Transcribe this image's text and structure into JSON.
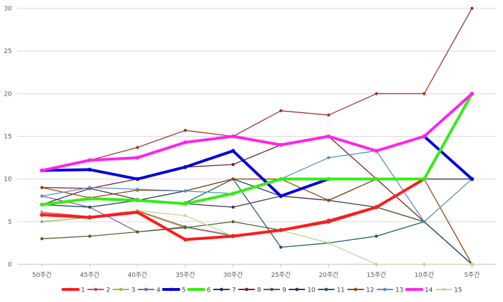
{
  "chart_data": {
    "type": "line",
    "title": "",
    "xlabel": "",
    "ylabel": "",
    "categories": [
      "50주간",
      "45주간",
      "40주간",
      "35주간",
      "30주간",
      "25주간",
      "20주간",
      "15주간",
      "10주간",
      "5주간"
    ],
    "ylim": [
      0,
      30
    ],
    "yticks": [
      0,
      5,
      10,
      15,
      20,
      25,
      30
    ],
    "grid": true,
    "legend_position": "bottom",
    "series": [
      {
        "name": "1",
        "color": "#ff1a1a",
        "values": [
          5.8,
          5.5,
          6.1,
          2.9,
          3.3,
          4.0,
          5.0,
          6.7,
          10.0,
          null
        ]
      },
      {
        "name": "2",
        "color": "#c0504d",
        "values": [
          6.1,
          5.6,
          6.3,
          4.4,
          3.4,
          4.1,
          5.2,
          6.8,
          10.0,
          null
        ]
      },
      {
        "name": "3",
        "color": "#9bbb59",
        "values": [
          5.0,
          5.5,
          6.2,
          4.3,
          3.4,
          4.0,
          2.5,
          null,
          null,
          null
        ]
      },
      {
        "name": "4",
        "color": "#8064a2",
        "values": [
          8.0,
          6.7,
          3.8,
          4.4,
          3.3,
          null,
          null,
          null,
          null,
          null
        ]
      },
      {
        "name": "5",
        "color": "#0000dd",
        "values": [
          11.0,
          11.1,
          10.0,
          11.4,
          13.3,
          8.0,
          10.0,
          null,
          15.0,
          10.0
        ]
      },
      {
        "name": "6",
        "color": "#33ee11",
        "values": [
          7.0,
          7.7,
          7.5,
          7.1,
          8.3,
          10.0,
          10.0,
          10.0,
          10.0,
          20.0
        ]
      },
      {
        "name": "7",
        "color": "#1f3864",
        "values": [
          7.0,
          6.7,
          7.5,
          8.6,
          10.0,
          8.0,
          7.5,
          6.7,
          5.0,
          0.0
        ]
      },
      {
        "name": "8",
        "color": "#7b1c2b",
        "values": [
          9.0,
          8.9,
          10.0,
          11.4,
          11.7,
          14.0,
          15.0,
          10.0,
          5.0,
          null
        ]
      },
      {
        "name": "9",
        "color": "#4f6228",
        "values": [
          3.0,
          3.3,
          3.8,
          4.3,
          5.0,
          4.0,
          5.0,
          6.7,
          5.0,
          0.0
        ]
      },
      {
        "name": "10",
        "color": "#3f3151",
        "values": [
          7.0,
          8.9,
          7.6,
          7.1,
          6.7,
          8.0,
          7.5,
          10.0,
          10.0,
          10.0
        ]
      },
      {
        "name": "11",
        "color": "#215967",
        "values": [
          7.0,
          6.7,
          7.5,
          7.2,
          10.0,
          2.0,
          2.5,
          3.3,
          5.0,
          0.0
        ]
      },
      {
        "name": "12",
        "color": "#984807",
        "values": [
          9.0,
          7.8,
          8.7,
          8.6,
          10.0,
          10.0,
          7.5,
          10.0,
          10.0,
          0.0
        ]
      },
      {
        "name": "13",
        "color": "#5b8fc4",
        "values": [
          8.0,
          9.0,
          8.8,
          8.6,
          8.3,
          10.0,
          12.5,
          13.3,
          5.0,
          10.0
        ]
      },
      {
        "name": "14",
        "color": "#ff22ee",
        "values": [
          11.0,
          12.2,
          12.5,
          14.3,
          15.0,
          14.0,
          15.0,
          13.3,
          15.0,
          20.0
        ]
      },
      {
        "name": "15",
        "color": "#c4d79b",
        "values": [
          6.0,
          5.4,
          6.3,
          5.7,
          3.3,
          4.0,
          2.5,
          0.0,
          0.0,
          0.0
        ]
      },
      {
        "name": "",
        "color": "#a0392b",
        "values": [
          11.0,
          12.2,
          13.7,
          15.7,
          15.0,
          18.0,
          17.5,
          20.0,
          20.0,
          30.0
        ]
      }
    ]
  }
}
